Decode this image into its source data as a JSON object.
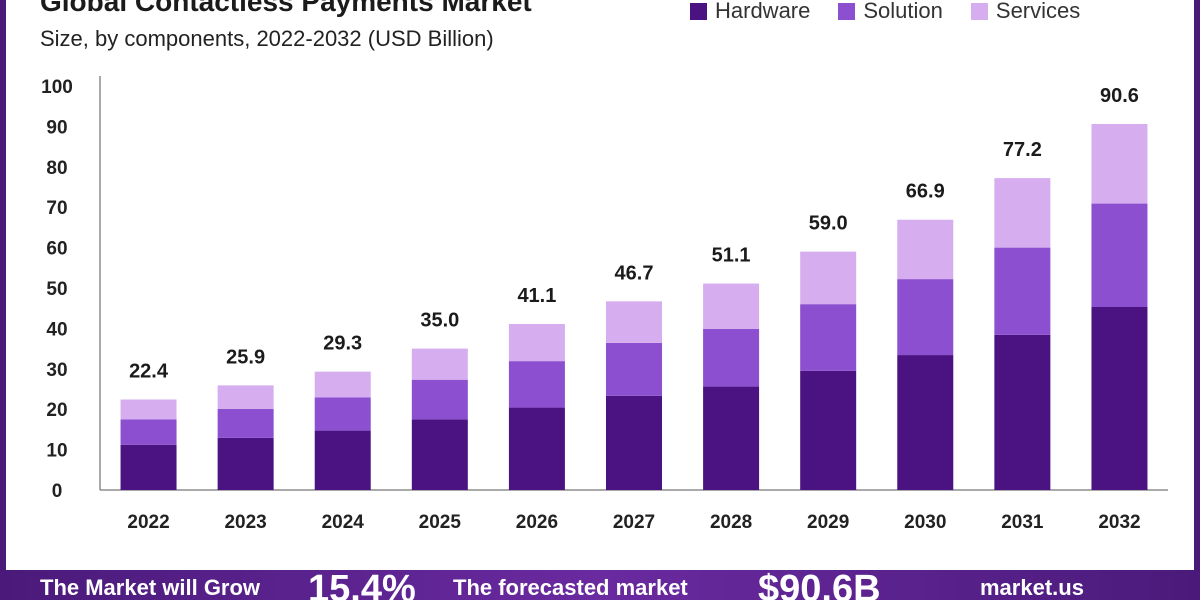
{
  "header": {
    "title": "Global Contactless Payments Market",
    "subtitle": "Size, by components, 2022-2032 (USD Billion)"
  },
  "footer": {
    "text1": "The Market will Grow",
    "value1": "15.4%",
    "text2": "The forecasted market",
    "value2": "$90.6B",
    "brand": "market.us"
  },
  "colors": {
    "hardware": "#4b1382",
    "solution": "#8b4fcf",
    "services": "#d6aef0"
  },
  "chart_data": {
    "type": "bar",
    "stacked": true,
    "title": "Global Contactless Payments Market",
    "subtitle": "Size, by components, 2022-2032 (USD Billion)",
    "categories": [
      "2022",
      "2023",
      "2024",
      "2025",
      "2026",
      "2027",
      "2028",
      "2029",
      "2030",
      "2031",
      "2032"
    ],
    "series": [
      {
        "name": "Hardware",
        "values": [
          11.2,
          12.9,
          14.7,
          17.5,
          20.4,
          23.3,
          25.6,
          29.5,
          33.4,
          38.4,
          45.3
        ]
      },
      {
        "name": "Solution",
        "values": [
          6.3,
          7.2,
          8.2,
          9.8,
          11.5,
          13.1,
          14.3,
          16.5,
          18.8,
          21.6,
          25.6
        ]
      },
      {
        "name": "Services",
        "values": [
          4.9,
          5.8,
          6.4,
          7.7,
          9.2,
          10.3,
          11.2,
          13.0,
          14.7,
          17.2,
          19.7
        ]
      }
    ],
    "totals": [
      "22.4",
      "25.9",
      "29.3",
      "35.0",
      "41.1",
      "46.7",
      "51.1",
      "59.0",
      "66.9",
      "77.2",
      "90.6"
    ],
    "yticks": [
      "0",
      "10",
      "20",
      "30",
      "40",
      "50",
      "60",
      "70",
      "80",
      "90",
      "100"
    ],
    "ylim": [
      0,
      100
    ],
    "grid": false,
    "legend": "top-right"
  }
}
